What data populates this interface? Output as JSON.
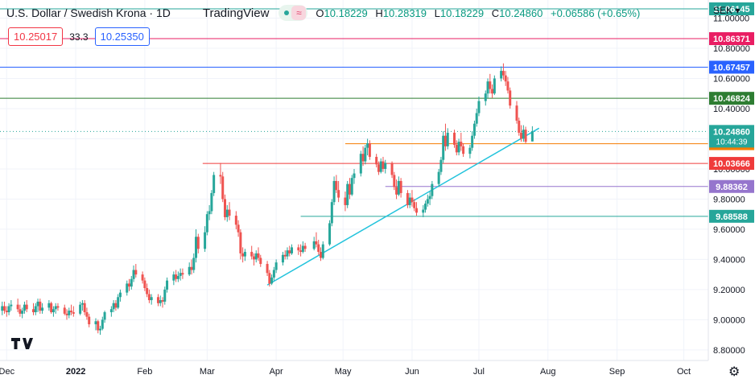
{
  "header": {
    "symbol": "U.S. Dollar / Swedish Krona · 1D",
    "brand": "TradingView",
    "ohlc": {
      "o_label": "O",
      "o_value": "10.18229",
      "h_label": "H",
      "h_value": "10.28319",
      "l_label": "L",
      "l_value": "10.18229",
      "c_label": "C",
      "c_value": "10.24860",
      "change": "+0.06586 (+0.65%)"
    }
  },
  "quote": {
    "sell": "10.25017",
    "spread": "33.3",
    "buy": "10.25350"
  },
  "currency": "SEK",
  "colors": {
    "up": "#26a69a",
    "down": "#ef5350",
    "trendline": "#22c3dc"
  },
  "chart_data": {
    "type": "candlestick",
    "y_ticks": [
      "8.80000",
      "9.00000",
      "9.20000",
      "9.40000",
      "9.60000",
      "9.80000",
      "10.00000",
      "10.20000",
      "10.40000",
      "10.60000",
      "10.80000",
      "11.00000"
    ],
    "x_ticks": [
      {
        "label": "Dec",
        "date": "2021-12-01"
      },
      {
        "label": "2022",
        "date": "2022-01-01"
      },
      {
        "label": "Feb",
        "date": "2022-02-01"
      },
      {
        "label": "Mar",
        "date": "2022-03-01"
      },
      {
        "label": "Apr",
        "date": "2022-04-01"
      },
      {
        "label": "May",
        "date": "2022-05-01"
      },
      {
        "label": "Jun",
        "date": "2022-06-01"
      },
      {
        "label": "Jul",
        "date": "2022-07-01"
      },
      {
        "label": "Aug",
        "date": "2022-08-01"
      },
      {
        "label": "Sep",
        "date": "2022-09-01"
      },
      {
        "label": "Oct",
        "date": "2022-10-01"
      }
    ],
    "ylim": [
      8.73,
      11.12
    ],
    "xlim": [
      "2021-11-28",
      "2022-10-12"
    ],
    "key_levels": [
      {
        "value": 11.06145,
        "label": "11.06145",
        "color": "#26a69a",
        "start": "2021-11-28"
      },
      {
        "value": 10.86371,
        "label": "10.86371",
        "color": "#e91e63",
        "start": "2021-11-28"
      },
      {
        "value": 10.67457,
        "label": "10.67457",
        "color": "#2962ff",
        "start": "2021-11-28"
      },
      {
        "value": 10.46824,
        "label": "10.46824",
        "color": "#2e7d32",
        "start": "2021-11-28"
      },
      {
        "value": 10.16739,
        "label": "10.16739",
        "color": "#f57c00",
        "start": "2022-05-02"
      },
      {
        "value": 10.03666,
        "label": "10.03666",
        "color": "#ef3b3b",
        "start": "2022-02-27"
      },
      {
        "value": 9.88362,
        "label": "9.88362",
        "color": "#9575cd",
        "start": "2022-05-20"
      },
      {
        "value": 9.68588,
        "label": "9.68588",
        "color": "#26a69a",
        "start": "2022-04-12"
      }
    ],
    "last_price": {
      "value": 10.2486,
      "label": "10.24860",
      "countdown": "10:44:39",
      "color": "#26a69a"
    },
    "trendline": [
      {
        "date": "2022-03-28",
        "value": 9.23
      },
      {
        "date": "2022-07-28",
        "value": 10.27
      }
    ],
    "candles": [
      [
        "2021-11-29",
        9.06,
        9.12,
        9.03,
        9.09
      ],
      [
        "2021-11-30",
        9.09,
        9.12,
        9.04,
        9.06
      ],
      [
        "2021-12-01",
        9.06,
        9.09,
        9.02,
        9.05
      ],
      [
        "2021-12-02",
        9.05,
        9.11,
        9.03,
        9.09
      ],
      [
        "2021-12-03",
        9.09,
        9.13,
        9.06,
        9.1
      ],
      [
        "2021-12-06",
        9.1,
        9.14,
        9.05,
        9.07
      ],
      [
        "2021-12-07",
        9.07,
        9.1,
        9.02,
        9.04
      ],
      [
        "2021-12-08",
        9.04,
        9.08,
        9.01,
        9.06
      ],
      [
        "2021-12-09",
        9.06,
        9.12,
        9.04,
        9.1
      ],
      [
        "2021-12-10",
        9.1,
        9.13,
        9.05,
        9.07
      ],
      [
        "2021-12-13",
        9.07,
        9.11,
        9.03,
        9.05
      ],
      [
        "2021-12-14",
        9.05,
        9.11,
        9.03,
        9.09
      ],
      [
        "2021-12-15",
        9.09,
        9.14,
        9.05,
        9.12
      ],
      [
        "2021-12-16",
        9.12,
        9.14,
        9.04,
        9.06
      ],
      [
        "2021-12-17",
        9.06,
        9.11,
        9.04,
        9.08
      ],
      [
        "2021-12-20",
        9.08,
        9.13,
        9.06,
        9.11
      ],
      [
        "2021-12-21",
        9.11,
        9.12,
        9.04,
        9.05
      ],
      [
        "2021-12-22",
        9.05,
        9.09,
        9.02,
        9.07
      ],
      [
        "2021-12-23",
        9.07,
        9.11,
        9.04,
        9.09
      ],
      [
        "2021-12-24",
        9.09,
        9.11,
        9.06,
        9.08
      ],
      [
        "2021-12-27",
        9.08,
        9.1,
        9.03,
        9.04
      ],
      [
        "2021-12-28",
        9.04,
        9.07,
        9.0,
        9.03
      ],
      [
        "2021-12-29",
        9.03,
        9.08,
        9.01,
        9.06
      ],
      [
        "2021-12-30",
        9.06,
        9.1,
        9.03,
        9.05
      ],
      [
        "2021-12-31",
        9.05,
        9.09,
        9.02,
        9.04
      ],
      [
        "2022-01-03",
        9.04,
        9.12,
        9.03,
        9.1
      ],
      [
        "2022-01-04",
        9.1,
        9.13,
        9.06,
        9.11
      ],
      [
        "2022-01-05",
        9.11,
        9.13,
        9.03,
        9.05
      ],
      [
        "2022-01-06",
        9.05,
        9.08,
        9.0,
        9.02
      ],
      [
        "2022-01-07",
        9.02,
        9.04,
        8.95,
        8.97
      ],
      [
        "2022-01-10",
        8.97,
        9.01,
        8.93,
        8.99
      ],
      [
        "2022-01-11",
        8.99,
        9.0,
        8.91,
        8.93
      ],
      [
        "2022-01-12",
        8.93,
        8.96,
        8.9,
        8.94
      ],
      [
        "2022-01-13",
        8.94,
        9.02,
        8.93,
        9.0
      ],
      [
        "2022-01-14",
        9.0,
        9.06,
        8.98,
        9.05
      ],
      [
        "2022-01-17",
        9.05,
        9.09,
        9.02,
        9.07
      ],
      [
        "2022-01-18",
        9.07,
        9.13,
        9.05,
        9.11
      ],
      [
        "2022-01-19",
        9.11,
        9.13,
        9.06,
        9.08
      ],
      [
        "2022-01-20",
        9.08,
        9.17,
        9.07,
        9.15
      ],
      [
        "2022-01-21",
        9.15,
        9.2,
        9.12,
        9.18
      ],
      [
        "2022-01-24",
        9.18,
        9.26,
        9.16,
        9.24
      ],
      [
        "2022-01-25",
        9.24,
        9.27,
        9.19,
        9.22
      ],
      [
        "2022-01-26",
        9.22,
        9.29,
        9.2,
        9.27
      ],
      [
        "2022-01-27",
        9.27,
        9.36,
        9.25,
        9.33
      ],
      [
        "2022-01-28",
        9.33,
        9.37,
        9.28,
        9.3
      ],
      [
        "2022-01-31",
        9.3,
        9.32,
        9.24,
        9.26
      ],
      [
        "2022-02-01",
        9.26,
        9.28,
        9.19,
        9.21
      ],
      [
        "2022-02-02",
        9.21,
        9.24,
        9.15,
        9.17
      ],
      [
        "2022-02-03",
        9.17,
        9.2,
        9.11,
        9.13
      ],
      [
        "2022-02-04",
        9.13,
        9.17,
        9.1,
        9.15
      ],
      [
        "2022-02-07",
        9.15,
        9.17,
        9.09,
        9.11
      ],
      [
        "2022-02-08",
        9.11,
        9.16,
        9.09,
        9.13
      ],
      [
        "2022-02-09",
        9.13,
        9.15,
        9.08,
        9.12
      ],
      [
        "2022-02-10",
        9.12,
        9.22,
        9.1,
        9.2
      ],
      [
        "2022-02-11",
        9.2,
        9.28,
        9.18,
        9.26
      ],
      [
        "2022-02-14",
        9.26,
        9.32,
        9.23,
        9.3
      ],
      [
        "2022-02-15",
        9.3,
        9.33,
        9.25,
        9.27
      ],
      [
        "2022-02-16",
        9.27,
        9.32,
        9.25,
        9.29
      ],
      [
        "2022-02-17",
        9.29,
        9.34,
        9.26,
        9.31
      ],
      [
        "2022-02-18",
        9.31,
        9.34,
        9.27,
        9.3
      ],
      [
        "2022-02-21",
        9.3,
        9.38,
        9.29,
        9.35
      ],
      [
        "2022-02-22",
        9.35,
        9.4,
        9.3,
        9.33
      ],
      [
        "2022-02-23",
        9.33,
        9.44,
        9.31,
        9.41
      ],
      [
        "2022-02-24",
        9.41,
        9.6,
        9.38,
        9.55
      ],
      [
        "2022-02-25",
        9.55,
        9.57,
        9.44,
        9.47
      ],
      [
        "2022-02-28",
        9.47,
        9.62,
        9.45,
        9.58
      ],
      [
        "2022-03-01",
        9.58,
        9.72,
        9.56,
        9.7
      ],
      [
        "2022-03-02",
        9.7,
        9.76,
        9.66,
        9.72
      ],
      [
        "2022-03-03",
        9.72,
        9.86,
        9.7,
        9.84
      ],
      [
        "2022-03-04",
        9.84,
        9.98,
        9.82,
        9.96
      ],
      [
        "2022-03-07",
        9.96,
        10.04,
        9.9,
        9.95
      ],
      [
        "2022-03-08",
        9.95,
        9.98,
        9.78,
        9.8
      ],
      [
        "2022-03-09",
        9.8,
        9.83,
        9.66,
        9.68
      ],
      [
        "2022-03-10",
        9.68,
        9.76,
        9.65,
        9.73
      ],
      [
        "2022-03-11",
        9.73,
        9.78,
        9.66,
        9.69
      ],
      [
        "2022-03-14",
        9.69,
        9.72,
        9.6,
        9.63
      ],
      [
        "2022-03-15",
        9.63,
        9.66,
        9.55,
        9.58
      ],
      [
        "2022-03-16",
        9.58,
        9.6,
        9.4,
        9.44
      ],
      [
        "2022-03-17",
        9.44,
        9.48,
        9.38,
        9.42
      ],
      [
        "2022-03-18",
        9.42,
        9.47,
        9.39,
        9.45
      ],
      [
        "2022-03-21",
        9.45,
        9.49,
        9.4,
        9.42
      ],
      [
        "2022-03-22",
        9.42,
        9.44,
        9.36,
        9.4
      ],
      [
        "2022-03-23",
        9.4,
        9.46,
        9.38,
        9.44
      ],
      [
        "2022-03-24",
        9.44,
        9.48,
        9.39,
        9.41
      ],
      [
        "2022-03-25",
        9.41,
        9.43,
        9.35,
        9.37
      ],
      [
        "2022-03-28",
        9.37,
        9.39,
        9.29,
        9.31
      ],
      [
        "2022-03-29",
        9.31,
        9.33,
        9.22,
        9.24
      ],
      [
        "2022-03-30",
        9.24,
        9.3,
        9.23,
        9.28
      ],
      [
        "2022-03-31",
        9.28,
        9.35,
        9.26,
        9.33
      ],
      [
        "2022-04-01",
        9.33,
        9.4,
        9.31,
        9.38
      ],
      [
        "2022-04-04",
        9.38,
        9.45,
        9.36,
        9.43
      ],
      [
        "2022-04-05",
        9.43,
        9.46,
        9.4,
        9.42
      ],
      [
        "2022-04-06",
        9.42,
        9.48,
        9.4,
        9.46
      ],
      [
        "2022-04-07",
        9.46,
        9.49,
        9.42,
        9.44
      ],
      [
        "2022-04-08",
        9.44,
        9.5,
        9.43,
        9.48
      ],
      [
        "2022-04-11",
        9.48,
        9.5,
        9.43,
        9.46
      ],
      [
        "2022-04-12",
        9.46,
        9.5,
        9.42,
        9.45
      ],
      [
        "2022-04-13",
        9.45,
        9.52,
        9.44,
        9.49
      ],
      [
        "2022-04-14",
        9.49,
        9.51,
        9.45,
        9.47
      ],
      [
        "2022-04-18",
        9.47,
        9.55,
        9.46,
        9.52
      ],
      [
        "2022-04-19",
        9.52,
        9.58,
        9.48,
        9.5
      ],
      [
        "2022-04-20",
        9.5,
        9.53,
        9.43,
        9.45
      ],
      [
        "2022-04-21",
        9.45,
        9.48,
        9.39,
        9.41
      ],
      [
        "2022-04-22",
        9.41,
        9.52,
        9.4,
        9.5
      ],
      [
        "2022-04-25",
        9.5,
        9.66,
        9.49,
        9.64
      ],
      [
        "2022-04-26",
        9.64,
        9.8,
        9.62,
        9.78
      ],
      [
        "2022-04-27",
        9.78,
        9.95,
        9.76,
        9.92
      ],
      [
        "2022-04-28",
        9.92,
        9.96,
        9.84,
        9.86
      ],
      [
        "2022-04-29",
        9.86,
        9.92,
        9.78,
        9.81
      ],
      [
        "2022-05-02",
        9.81,
        9.85,
        9.72,
        9.76
      ],
      [
        "2022-05-03",
        9.76,
        9.92,
        9.74,
        9.9
      ],
      [
        "2022-05-04",
        9.9,
        9.94,
        9.8,
        9.83
      ],
      [
        "2022-05-05",
        9.83,
        9.96,
        9.82,
        9.94
      ],
      [
        "2022-05-06",
        9.94,
        10.0,
        9.9,
        9.97
      ],
      [
        "2022-05-09",
        9.97,
        10.12,
        9.95,
        10.1
      ],
      [
        "2022-05-10",
        10.1,
        10.15,
        10.02,
        10.05
      ],
      [
        "2022-05-11",
        10.05,
        10.16,
        10.03,
        10.14
      ],
      [
        "2022-05-12",
        10.14,
        10.2,
        10.09,
        10.17
      ],
      [
        "2022-05-13",
        10.17,
        10.19,
        10.06,
        10.08
      ],
      [
        "2022-05-16",
        10.08,
        10.1,
        10.01,
        10.03
      ],
      [
        "2022-05-17",
        10.03,
        10.05,
        9.96,
        9.98
      ],
      [
        "2022-05-18",
        9.98,
        10.07,
        9.97,
        10.05
      ],
      [
        "2022-05-19",
        10.05,
        10.08,
        9.98,
        10.0
      ],
      [
        "2022-05-20",
        10.0,
        10.06,
        9.97,
        10.04
      ],
      [
        "2022-05-23",
        10.04,
        10.05,
        9.94,
        9.96
      ],
      [
        "2022-05-24",
        9.96,
        9.98,
        9.86,
        9.88
      ],
      [
        "2022-05-25",
        9.88,
        9.93,
        9.8,
        9.83
      ],
      [
        "2022-05-26",
        9.83,
        9.95,
        9.82,
        9.92
      ],
      [
        "2022-05-27",
        9.92,
        9.94,
        9.81,
        9.84
      ],
      [
        "2022-05-30",
        9.84,
        9.86,
        9.74,
        9.76
      ],
      [
        "2022-05-31",
        9.76,
        9.84,
        9.74,
        9.81
      ],
      [
        "2022-06-01",
        9.81,
        9.86,
        9.75,
        9.78
      ],
      [
        "2022-06-02",
        9.78,
        9.8,
        9.72,
        9.74
      ],
      [
        "2022-06-03",
        9.74,
        9.78,
        9.69,
        9.71
      ],
      [
        "2022-06-06",
        9.71,
        9.76,
        9.68,
        9.73
      ],
      [
        "2022-06-07",
        9.73,
        9.79,
        9.71,
        9.77
      ],
      [
        "2022-06-08",
        9.77,
        9.83,
        9.75,
        9.8
      ],
      [
        "2022-06-09",
        9.8,
        9.85,
        9.76,
        9.82
      ],
      [
        "2022-06-10",
        9.82,
        9.92,
        9.8,
        9.9
      ],
      [
        "2022-06-13",
        9.9,
        10.0,
        9.88,
        9.98
      ],
      [
        "2022-06-14",
        9.98,
        10.08,
        9.96,
        10.06
      ],
      [
        "2022-06-15",
        10.06,
        10.25,
        10.04,
        10.22
      ],
      [
        "2022-06-16",
        10.22,
        10.3,
        10.12,
        10.15
      ],
      [
        "2022-06-17",
        10.15,
        10.27,
        10.13,
        10.24
      ],
      [
        "2022-06-20",
        10.24,
        10.26,
        10.14,
        10.16
      ],
      [
        "2022-06-21",
        10.16,
        10.19,
        10.09,
        10.11
      ],
      [
        "2022-06-22",
        10.11,
        10.2,
        10.09,
        10.18
      ],
      [
        "2022-06-23",
        10.18,
        10.24,
        10.12,
        10.15
      ],
      [
        "2022-06-24",
        10.15,
        10.17,
        10.08,
        10.1
      ],
      [
        "2022-06-27",
        10.1,
        10.16,
        10.07,
        10.14
      ],
      [
        "2022-06-28",
        10.14,
        10.25,
        10.12,
        10.22
      ],
      [
        "2022-06-29",
        10.22,
        10.32,
        10.2,
        10.3
      ],
      [
        "2022-06-30",
        10.3,
        10.4,
        10.28,
        10.37
      ],
      [
        "2022-07-01",
        10.37,
        10.48,
        10.35,
        10.45
      ],
      [
        "2022-07-04",
        10.45,
        10.52,
        10.42,
        10.5
      ],
      [
        "2022-07-05",
        10.5,
        10.6,
        10.47,
        10.58
      ],
      [
        "2022-07-06",
        10.58,
        10.63,
        10.5,
        10.53
      ],
      [
        "2022-07-07",
        10.53,
        10.56,
        10.47,
        10.5
      ],
      [
        "2022-07-08",
        10.5,
        10.62,
        10.49,
        10.6
      ],
      [
        "2022-07-11",
        10.6,
        10.68,
        10.58,
        10.65
      ],
      [
        "2022-07-12",
        10.65,
        10.7,
        10.59,
        10.62
      ],
      [
        "2022-07-13",
        10.62,
        10.65,
        10.55,
        10.58
      ],
      [
        "2022-07-14",
        10.58,
        10.61,
        10.5,
        10.52
      ],
      [
        "2022-07-15",
        10.52,
        10.54,
        10.4,
        10.42
      ],
      [
        "2022-07-18",
        10.42,
        10.45,
        10.3,
        10.32
      ],
      [
        "2022-07-19",
        10.32,
        10.34,
        10.22,
        10.24
      ],
      [
        "2022-07-20",
        10.24,
        10.29,
        10.18,
        10.2
      ],
      [
        "2022-07-21",
        10.2,
        10.29,
        10.18,
        10.26
      ],
      [
        "2022-07-22",
        10.26,
        10.28,
        10.17,
        10.18
      ],
      [
        "2022-07-25",
        10.18229,
        10.28319,
        10.18229,
        10.2486
      ]
    ]
  }
}
